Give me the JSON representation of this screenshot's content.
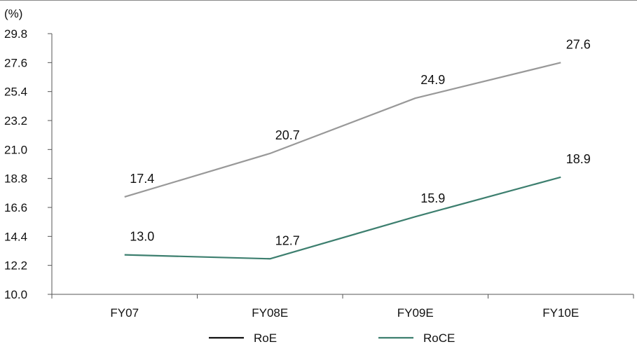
{
  "chart_data": {
    "type": "line",
    "unit_label": "(%)",
    "categories": [
      "FY07",
      "FY08E",
      "FY09E",
      "FY10E"
    ],
    "ylim": [
      10.0,
      29.8
    ],
    "yticks": [
      "10.0",
      "12.2",
      "14.4",
      "16.6",
      "18.8",
      "21.0",
      "23.2",
      "25.4",
      "27.6",
      "29.8"
    ],
    "series": [
      {
        "name": "RoE",
        "values": [
          17.4,
          20.7,
          24.9,
          27.6
        ],
        "labels": [
          "17.4",
          "20.7",
          "24.9",
          "27.6"
        ],
        "line_color": "#999999",
        "legend_color": "#111111"
      },
      {
        "name": "RoCE",
        "values": [
          13.0,
          12.7,
          15.9,
          18.9
        ],
        "labels": [
          "13.0",
          "12.7",
          "15.9",
          "18.9"
        ],
        "line_color": "#3d7f6f",
        "legend_color": "#3d7f6f"
      }
    ],
    "grid": false,
    "legend_position": "bottom",
    "axis_color": "#555555",
    "frame_color": "#888888"
  }
}
